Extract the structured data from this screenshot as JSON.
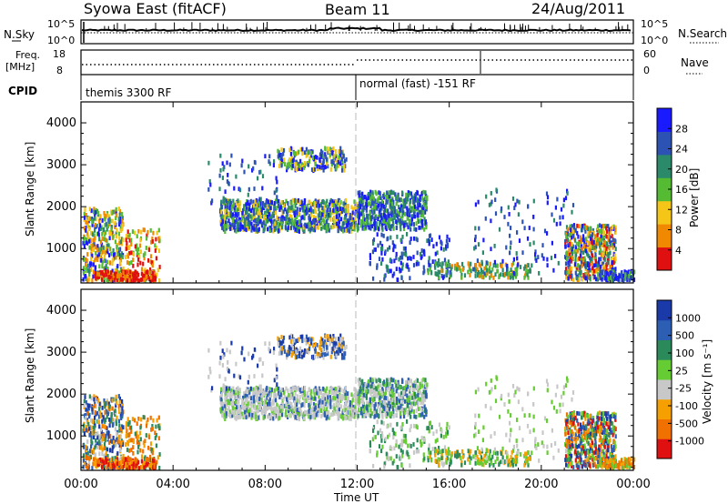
{
  "header": {
    "station": "Syowa East (fitACF)",
    "beam": "Beam 11",
    "date": "24/Aug/2011"
  },
  "nsky_panel": {
    "left_label": "N.Sky",
    "right_label": "N.Search",
    "left_ticks": [
      "10^5",
      "10^0"
    ],
    "right_ticks": [
      "10^5",
      "10^0"
    ]
  },
  "freq_panel": {
    "left_label_1": "Freq.",
    "left_label_2": "[MHz]",
    "right_label": "Nave",
    "left_ticks": [
      "18",
      "8"
    ],
    "right_ticks": [
      "60",
      "0"
    ]
  },
  "cpid_panel": {
    "label": "CPID",
    "mode1": "themis 3300 RF",
    "mode2": "normal (fast) -151 RF"
  },
  "x_axis": {
    "label": "Time UT",
    "ticks": [
      "00:00",
      "04:00",
      "08:00",
      "12:00",
      "16:00",
      "20:00",
      "00:00"
    ]
  },
  "chart_data": [
    {
      "type": "heatmap",
      "name": "power",
      "ylabel": "Slant Range [km]",
      "xlabel": "Time UT",
      "xlim_hours": [
        0,
        24
      ],
      "ylim": [
        180,
        4500
      ],
      "yticks": [
        "1000",
        "2000",
        "3000",
        "4000"
      ],
      "colorbar": {
        "label": "Power [dB]",
        "ticks": [
          "28",
          "24",
          "20",
          "16",
          "12",
          "8",
          "4"
        ],
        "range": [
          0,
          32
        ],
        "colors": [
          "#1a1aff",
          "#2c53b3",
          "#2a8a6a",
          "#55bb33",
          "#f5c518",
          "#f08800",
          "#e01010"
        ]
      }
    },
    {
      "type": "heatmap",
      "name": "velocity",
      "ylabel": "Slant Range [km]",
      "xlabel": "Time UT",
      "xlim_hours": [
        0,
        24
      ],
      "ylim": [
        180,
        4500
      ],
      "yticks": [
        "1000",
        "2000",
        "3000",
        "4000"
      ],
      "colorbar": {
        "label": "Velocity [m s⁻¹]",
        "ticks": [
          "1000",
          "500",
          "100",
          "25",
          "-25",
          "-100",
          "-500",
          "-1000"
        ],
        "colors": [
          "#1a3aaa",
          "#2c5fb3",
          "#2a8a5a",
          "#66cc33",
          "#c8c8c8",
          "#f5a000",
          "#f07000",
          "#e01010"
        ]
      }
    }
  ]
}
